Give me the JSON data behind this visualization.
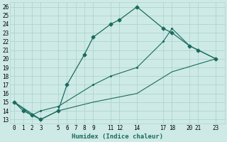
{
  "xlabel": "Humidex (Indice chaleur)",
  "bg_color": "#ceeae6",
  "grid_color": "#aed4cf",
  "line_color": "#1a6b5e",
  "ylim": [
    12.5,
    26.5
  ],
  "xlim": [
    -0.5,
    24
  ],
  "yticks": [
    13,
    14,
    15,
    16,
    17,
    18,
    19,
    20,
    21,
    22,
    23,
    24,
    25,
    26
  ],
  "xticks": [
    0,
    1,
    2,
    3,
    5,
    6,
    7,
    8,
    9,
    11,
    12,
    14,
    17,
    18,
    20,
    21,
    23
  ],
  "xtick_labels": [
    "0",
    "1",
    "2",
    "3",
    "5",
    "6",
    "7",
    "8",
    "9",
    "11",
    "12",
    "14",
    "17",
    "18",
    "20",
    "21",
    "23"
  ],
  "line1_x": [
    0,
    1,
    2,
    3,
    5,
    6,
    8,
    9,
    11,
    12,
    14,
    17,
    18,
    20,
    21,
    23
  ],
  "line1_y": [
    15.0,
    14.0,
    13.5,
    13.0,
    14.0,
    17.0,
    20.5,
    22.5,
    24.0,
    24.5,
    26.0,
    23.5,
    23.0,
    21.5,
    21.0,
    20.0
  ],
  "line2_x": [
    0,
    2,
    3,
    5,
    9,
    11,
    14,
    17,
    18,
    20,
    21,
    23
  ],
  "line2_y": [
    15.0,
    13.5,
    14.0,
    14.5,
    17.0,
    18.0,
    19.0,
    22.0,
    23.5,
    21.5,
    21.0,
    20.0
  ],
  "line3_x": [
    0,
    3,
    5,
    9,
    14,
    18,
    23
  ],
  "line3_y": [
    15.0,
    13.0,
    14.0,
    15.0,
    16.0,
    18.5,
    20.0
  ]
}
